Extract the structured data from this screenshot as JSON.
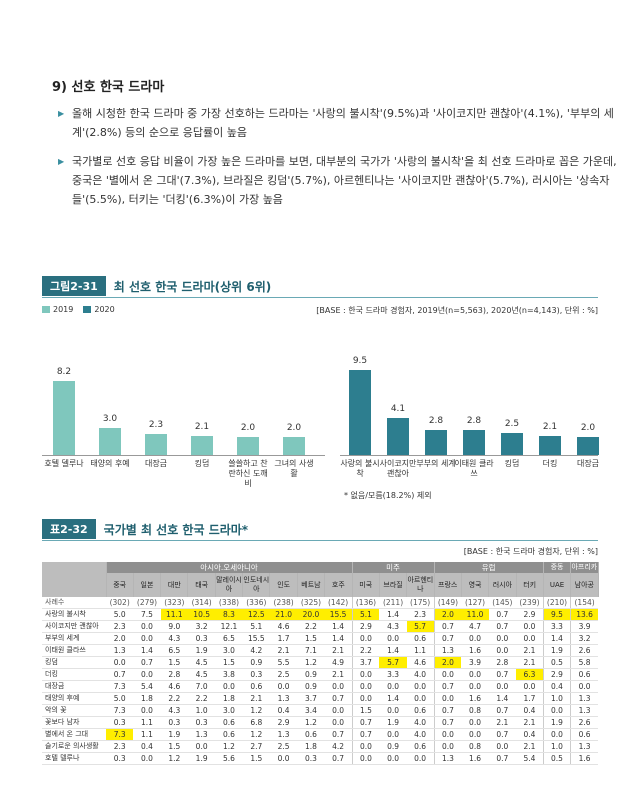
{
  "section_title": "9) 선호 한국 드라마",
  "bullets": [
    "올해 시청한 한국 드라마 중 가장 선호하는 드라마는 '사랑의 불시착'(9.5%)과 '사이코지만 괜찮아'(4.1%), '부부의 세계'(2.8%) 등의 순으로 응답률이 높음",
    "국가별로 선호 응답 비율이 가장 높은 드라마를 보면, 대부분의 국가가 '사랑의 불시착'을 최 선호 드라마로 꼽은 가운데, 중국은 '별에서 온 그대'(7.3%), 브라질은 킹덤'(5.7%), 아르헨티나는 '사이코지만 괜찮아'(5.7%), 러시아는 '상속자들'(5.5%), 터키는 '더킹'(6.3%)이 가장 높음"
  ],
  "figure": {
    "tag": "그림2-31",
    "title": "최 선호 한국 드라마(상위 6위)",
    "legend_2019": "2019",
    "legend_2020": "2020",
    "base": "[BASE : 한국 드라마 경험자, 2019년(n=5,563), 2020년(n=4,143), 단위 : %]",
    "note": "* 없음/모름(18.2%) 제외",
    "colors": {
      "y2019": "#7fc7bd",
      "y2020": "#2d7e8f"
    }
  },
  "chart_data": {
    "type": "bar",
    "title": "최 선호 한국 드라마(상위 6위)",
    "unit": "%",
    "series": [
      {
        "name": "2019",
        "categories": [
          "호텔 델루나",
          "태양의 후예",
          "대장금",
          "킹덤",
          "쓸쓸하고 찬란하신 도깨비",
          "그녀의 사생활"
        ],
        "values": [
          8.2,
          3.0,
          2.3,
          2.1,
          2.0,
          2.0
        ]
      },
      {
        "name": "2020",
        "categories": [
          "사랑의 불시착",
          "사이코지만 괜찮아",
          "부부의 세계",
          "이태원 클라쓰",
          "킹덤",
          "더킹",
          "대장금"
        ],
        "values": [
          9.5,
          4.1,
          2.8,
          2.8,
          2.5,
          2.1,
          2.0
        ]
      }
    ]
  },
  "table": {
    "tag": "표2-32",
    "title": "국가별 최 선호 한국 드라마*",
    "base": "[BASE : 한국 드라마 경험자, 단위 : %]",
    "groups": [
      "아시아.오세아니아",
      "미주",
      "유럽",
      "중동",
      "아프리카"
    ],
    "columns": [
      "중국",
      "일본",
      "대만",
      "태국",
      "말레이시아",
      "인도네시아",
      "인도",
      "베트남",
      "호주",
      "미국",
      "브라질",
      "아르헨티나",
      "프랑스",
      "영국",
      "러시아",
      "터키",
      "UAE",
      "남아공"
    ],
    "rows": [
      {
        "label": "사례수",
        "values": [
          "(302)",
          "(279)",
          "(323)",
          "(314)",
          "(338)",
          "(336)",
          "(238)",
          "(325)",
          "(142)",
          "(136)",
          "(211)",
          "(175)",
          "(149)",
          "(127)",
          "(145)",
          "(239)",
          "(210)",
          "(154)"
        ]
      },
      {
        "label": "사랑의 불시착",
        "values": [
          "5.0",
          "7.5",
          "11.1",
          "10.5",
          "8.3",
          "12.5",
          "21.0",
          "20.0",
          "15.5",
          "5.1",
          "1.4",
          "2.3",
          "2.0",
          "11.0",
          "0.7",
          "2.9",
          "9.5",
          "13.6"
        ]
      },
      {
        "label": "사이코지만 괜찮아",
        "values": [
          "2.3",
          "0.0",
          "9.0",
          "3.2",
          "12.1",
          "5.1",
          "4.6",
          "2.2",
          "1.4",
          "2.9",
          "4.3",
          "5.7",
          "0.7",
          "4.7",
          "0.7",
          "0.0",
          "3.3",
          "3.9"
        ]
      },
      {
        "label": "부부의 세계",
        "values": [
          "2.0",
          "0.0",
          "4.3",
          "0.3",
          "6.5",
          "15.5",
          "1.7",
          "1.5",
          "1.4",
          "0.0",
          "0.0",
          "0.6",
          "0.7",
          "0.0",
          "0.0",
          "0.0",
          "1.4",
          "3.2"
        ]
      },
      {
        "label": "이태원 클라쓰",
        "values": [
          "1.3",
          "1.4",
          "6.5",
          "1.9",
          "3.0",
          "4.2",
          "2.1",
          "7.1",
          "2.1",
          "2.2",
          "1.4",
          "1.1",
          "1.3",
          "1.6",
          "0.0",
          "2.1",
          "1.9",
          "2.6"
        ]
      },
      {
        "label": "킹덤",
        "values": [
          "0.0",
          "0.7",
          "1.5",
          "4.5",
          "1.5",
          "0.9",
          "5.5",
          "1.2",
          "4.9",
          "3.7",
          "5.7",
          "4.6",
          "2.0",
          "3.9",
          "2.8",
          "2.1",
          "0.5",
          "5.8"
        ]
      },
      {
        "label": "더킹",
        "values": [
          "0.7",
          "0.0",
          "2.8",
          "4.5",
          "3.8",
          "0.3",
          "2.5",
          "0.9",
          "2.1",
          "0.0",
          "3.3",
          "4.0",
          "0.0",
          "0.0",
          "0.7",
          "6.3",
          "2.9",
          "0.6"
        ]
      },
      {
        "label": "대장금",
        "values": [
          "7.3",
          "5.4",
          "4.6",
          "7.0",
          "0.0",
          "0.6",
          "0.0",
          "0.9",
          "0.0",
          "0.0",
          "0.0",
          "0.0",
          "0.7",
          "0.0",
          "0.0",
          "0.0",
          "0.4",
          "0.0"
        ]
      },
      {
        "label": "태양의 후예",
        "values": [
          "5.0",
          "1.8",
          "2.2",
          "2.2",
          "1.8",
          "2.1",
          "1.3",
          "3.7",
          "0.7",
          "0.0",
          "1.4",
          "0.0",
          "0.0",
          "1.6",
          "1.4",
          "1.7",
          "1.0",
          "1.3"
        ]
      },
      {
        "label": "악의 꽃",
        "values": [
          "7.3",
          "0.0",
          "4.3",
          "1.0",
          "3.0",
          "1.2",
          "0.4",
          "3.4",
          "0.0",
          "1.5",
          "0.0",
          "0.6",
          "0.7",
          "0.8",
          "0.7",
          "0.4",
          "0.0",
          "1.3"
        ]
      },
      {
        "label": "꽃보다 남자",
        "values": [
          "0.3",
          "1.1",
          "0.3",
          "0.3",
          "0.6",
          "6.8",
          "2.9",
          "1.2",
          "0.0",
          "0.7",
          "1.9",
          "4.0",
          "0.7",
          "0.0",
          "2.1",
          "2.1",
          "1.9",
          "2.6"
        ]
      },
      {
        "label": "별에서 온 그대",
        "values": [
          "7.3",
          "1.1",
          "1.9",
          "1.3",
          "0.6",
          "1.2",
          "1.3",
          "0.6",
          "0.7",
          "0.7",
          "0.0",
          "4.0",
          "0.0",
          "0.0",
          "0.7",
          "0.4",
          "0.0",
          "0.6"
        ]
      },
      {
        "label": "슬기로운 의사생활",
        "values": [
          "2.3",
          "0.4",
          "1.5",
          "0.0",
          "1.2",
          "2.7",
          "2.5",
          "1.8",
          "4.2",
          "0.0",
          "0.9",
          "0.6",
          "0.0",
          "0.8",
          "0.0",
          "2.1",
          "1.0",
          "1.3"
        ]
      },
      {
        "label": "호텔 델루나",
        "values": [
          "0.3",
          "0.0",
          "1.2",
          "1.9",
          "5.6",
          "1.5",
          "0.0",
          "0.3",
          "0.7",
          "0.0",
          "0.0",
          "0.0",
          "1.3",
          "1.6",
          "0.7",
          "5.4",
          "0.5",
          "1.6"
        ]
      }
    ]
  }
}
